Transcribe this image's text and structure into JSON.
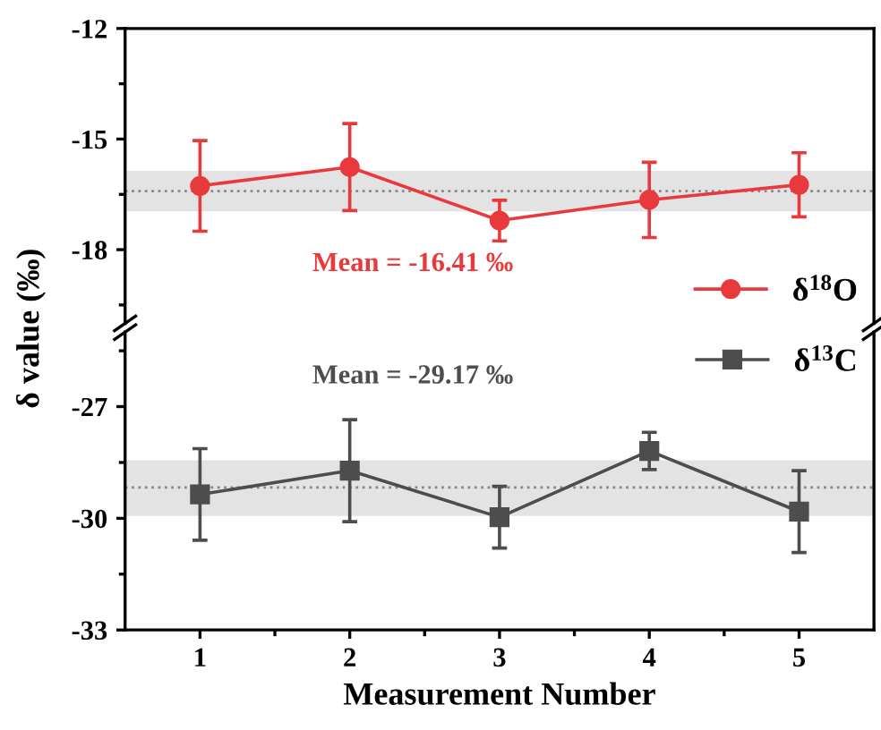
{
  "chart_data": [
    {
      "type": "line",
      "ylabel": "δ value (‰)",
      "x": [
        1,
        2,
        3,
        4,
        5
      ],
      "xlim": [
        0.5,
        5.5
      ],
      "ylim": [
        -20,
        -12
      ],
      "yticks": [
        -18,
        -15,
        -12
      ],
      "tick_labels": "y",
      "marker": "circle",
      "line_style": "solid",
      "legend": "bottom right",
      "grid": false,
      "series": [
        {
          "name": "δ$^{18}$O",
          "color": "#e8393c",
          "values": [
            -16.27,
            -15.76,
            -17.21,
            -16.65,
            -16.24
          ],
          "errors": [
            1.23,
            1.18,
            0.55,
            1.02,
            0.87
          ]
        }
      ],
      "ref_lines": [
        {
          "axis": "y",
          "value": -16.41,
          "color": "#888888",
          "line_style": "dotted"
        }
      ],
      "bands": [
        {
          "axis": "y",
          "from": -16.96,
          "to": -15.86,
          "color": "#e3e3e3"
        }
      ],
      "annotations": [
        "Mean = -16.41 ‰"
      ]
    },
    {
      "type": "line",
      "xlabel": "Measurement Number",
      "x": [
        1,
        2,
        3,
        4,
        5
      ],
      "xlim": [
        0.5,
        5.5
      ],
      "xticks": [
        1,
        2,
        3,
        4,
        5
      ],
      "ylim": [
        -33,
        -25
      ],
      "yticks": [
        -33,
        -30,
        -27
      ],
      "marker": "square",
      "line_style": "solid",
      "legend": "top right",
      "grid": false,
      "series": [
        {
          "name": "δ$^{13}$C",
          "color": "#4d4d4d",
          "values": [
            -29.36,
            -28.72,
            -29.97,
            -28.19,
            -29.82
          ],
          "errors": [
            1.23,
            1.37,
            0.83,
            0.5,
            1.1
          ]
        }
      ],
      "ref_lines": [
        {
          "axis": "y",
          "value": -29.17,
          "color": "#888888",
          "line_style": "dotted"
        }
      ],
      "bands": [
        {
          "axis": "y",
          "from": -29.94,
          "to": -28.44,
          "color": "#e3e3e3"
        }
      ],
      "annotations": [
        "Mean = -29.17 ‰"
      ]
    }
  ]
}
